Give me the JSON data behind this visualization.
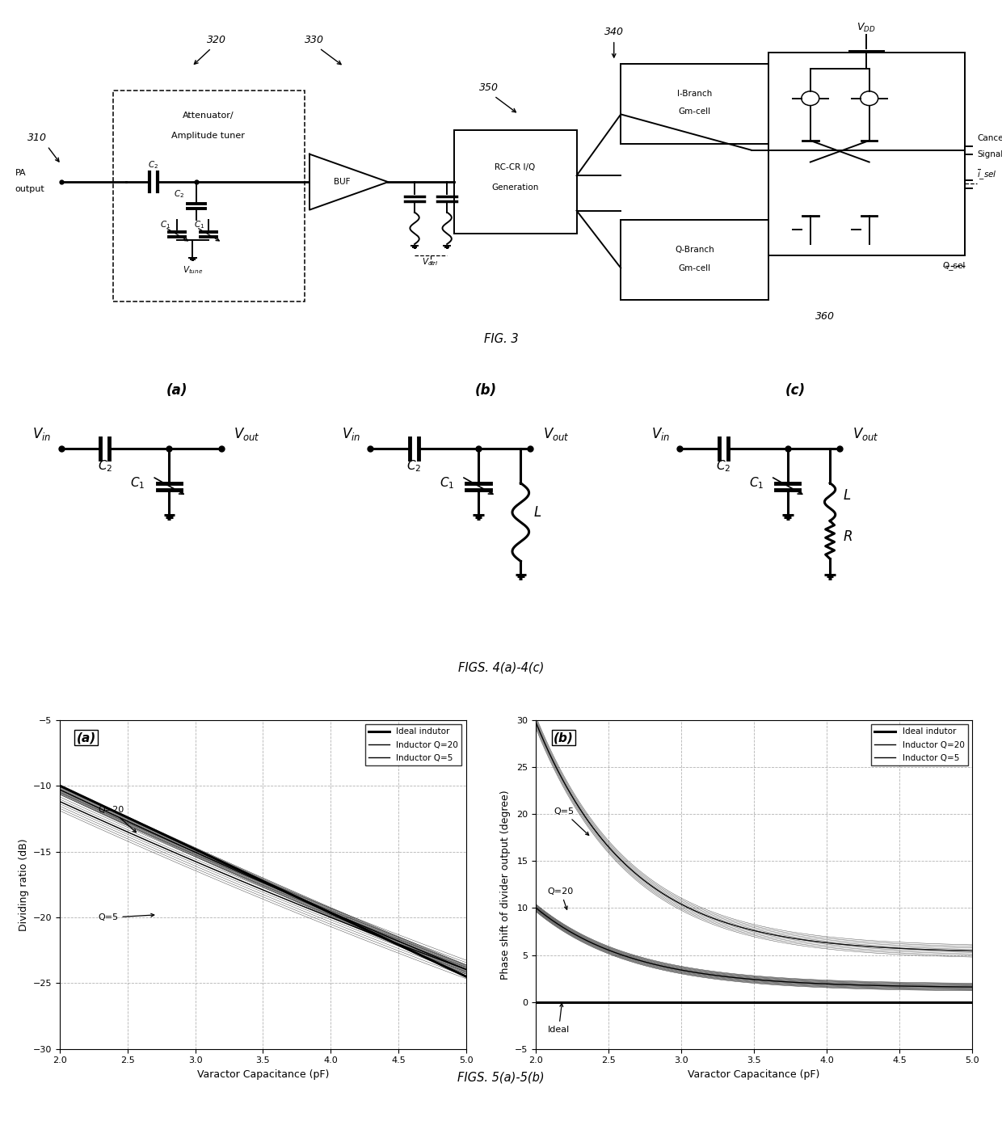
{
  "fig_width": 12.4,
  "fig_height": 14.03,
  "background_color": "#ffffff",
  "plot5a": {
    "label": "(a)",
    "xlabel": "Varactor Capacitance (pF)",
    "ylabel": "Dividing ratio (dB)",
    "xlim": [
      2,
      5
    ],
    "ylim": [
      -30,
      -5
    ],
    "xticks": [
      2,
      2.5,
      3,
      3.5,
      4,
      4.5,
      5
    ],
    "yticks": [
      -30,
      -25,
      -20,
      -15,
      -10,
      -5
    ],
    "legend_entries": [
      "Ideal indutor",
      "Inductor Q=20",
      "Inductor Q=5"
    ]
  },
  "plot5b": {
    "label": "(b)",
    "xlabel": "Varactor Capacitance (pF)",
    "ylabel": "Phase shift of divider output (degree)",
    "xlim": [
      2,
      5
    ],
    "ylim": [
      -5,
      30
    ],
    "xticks": [
      2,
      2.5,
      3,
      3.5,
      4,
      4.5,
      5
    ],
    "yticks": [
      -5,
      0,
      5,
      10,
      15,
      20,
      25,
      30
    ],
    "legend_entries": [
      "Ideal indutor",
      "Inductor Q=20",
      "Inductor Q=5"
    ]
  },
  "fig3_label": "FIG. 3",
  "fig4_label": "FIGS. 4(a)-4(c)",
  "fig5_label": "FIGS. 5(a)-5(b)"
}
